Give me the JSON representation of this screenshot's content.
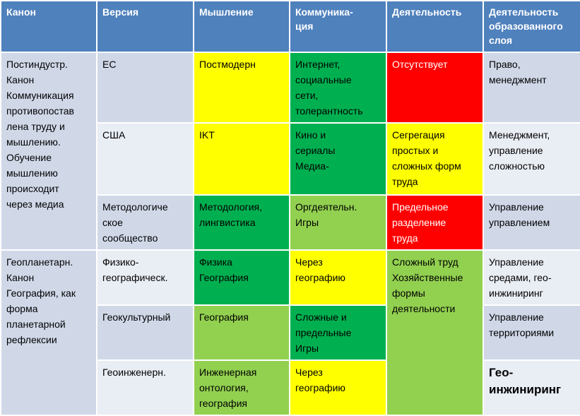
{
  "table": {
    "header": [
      "Канон",
      "Версия",
      "Мышление",
      "Коммуника-\nция",
      "Деятельность",
      "Деятельность\nобразованного\nслоя"
    ],
    "rows": [
      [
        "Постиндустр.\nКанон\nКоммуникация\nпротивопостав\nлена труду и\nмышлению.\nОбучение\nмышлению\nпроисходит\nчерез медиа",
        "ЕС",
        "Постмодерн",
        "Интернет,\nсоциальные\nсети,\nтолерантность",
        "Отсутствует",
        "Право,\nменеджмент"
      ],
      [
        "США",
        "IKT",
        "Кино и\nсериалы\nМедиа-",
        "Сегрегация\nпростых и\nсложных форм\nтруда",
        "Менеджмент,\nуправление\nсложностью"
      ],
      [
        "Методологиче\nское\nсообщество",
        "Методология,\nлингвистика",
        "Оргдеятельн.\nИгры",
        "Предельное\nразделение\nтруда",
        "Управление\nуправлением"
      ],
      [
        "Геопланетарн.\nКанон\nГеография, как\nформа\nпланетарной\nрефлексии",
        "Физико-\nгеографическ.",
        "Физика\nГеография",
        "Через\nгеографию",
        "Сложный труд\nХозяйственные\nформы\nдеятельности",
        "Управление\nсредами, гео-\nинжиниринг"
      ],
      [
        "Геокультурный",
        "География",
        "Сложные и\nпредельные\nИгры",
        "Управление\nтерриториями"
      ],
      [
        "Геоинженерн.",
        "Инженерная\nонтология,\nгеография",
        "Через\nгеографию",
        "Гео-\nинжиниринг"
      ]
    ]
  }
}
